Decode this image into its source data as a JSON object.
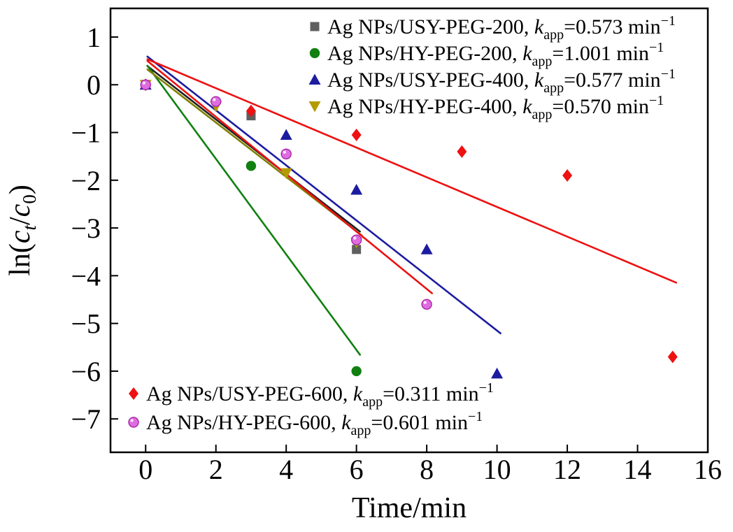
{
  "chart_data": {
    "type": "scatter",
    "title": "",
    "xlabel": "Time/min",
    "ylabel": "ln(ct/c0)",
    "ylabel_segments": [
      {
        "t": "ln(",
        "style": "normal"
      },
      {
        "t": "c",
        "style": "italic"
      },
      {
        "t": "t",
        "style": "sub-italic"
      },
      {
        "t": "/",
        "style": "normal"
      },
      {
        "t": "c",
        "style": "italic"
      },
      {
        "t": "0",
        "style": "sub"
      },
      {
        "t": ")",
        "style": "normal"
      }
    ],
    "xlim": [
      -1,
      16
    ],
    "ylim": [
      -7.7,
      1.6
    ],
    "xticks": [
      0,
      2,
      4,
      6,
      8,
      10,
      12,
      14,
      16
    ],
    "yticks": [
      1,
      0,
      -1,
      -2,
      -3,
      -4,
      -5,
      -6,
      -7
    ],
    "grid": false,
    "legend": {
      "separator": ", ",
      "k_symbol": "k",
      "k_sub": "app",
      "equals": "=",
      "unit": " min",
      "sup": "−1",
      "top_entries": [
        0,
        1,
        2,
        3
      ],
      "bottom_entries": [
        4,
        5
      ]
    },
    "series": [
      {
        "name": "Ag NPs/USY-PEG-200",
        "kapp": "0.573",
        "marker": "square",
        "color": "#5f5f5f",
        "line_color": "#1f1f1f",
        "points": [
          [
            0,
            0
          ],
          [
            3,
            -0.65
          ],
          [
            6,
            -3.45
          ]
        ],
        "fit_intercept": 0.42,
        "fit_x": [
          0.05,
          6.1
        ]
      },
      {
        "name": "Ag NPs/HY-PEG-200",
        "kapp": "1.001",
        "marker": "circle",
        "color": "#118011",
        "line_color": "#118011",
        "points": [
          [
            0,
            0
          ],
          [
            3,
            -1.7
          ],
          [
            6,
            -6.0
          ]
        ],
        "fit_intercept": 0.45,
        "fit_x": [
          0.05,
          6.1
        ]
      },
      {
        "name": "Ag NPs/USY-PEG-400",
        "kapp": "0.577",
        "marker": "triangle-up",
        "color": "#1c1ca0",
        "line_color": "#1c1ca0",
        "points": [
          [
            0,
            0
          ],
          [
            4,
            -1.05
          ],
          [
            6,
            -2.2
          ],
          [
            8,
            -3.45
          ],
          [
            10,
            -6.05
          ]
        ],
        "fit_intercept": 0.62,
        "fit_x": [
          0.05,
          10.1
        ]
      },
      {
        "name": "Ag NPs/HY-PEG-400",
        "kapp": "0.570",
        "marker": "triangle-down",
        "color": "#b39b00",
        "line_color": "#7f7f00",
        "points": [
          [
            0,
            0
          ],
          [
            2,
            -0.45
          ],
          [
            4,
            -1.85
          ],
          [
            6,
            -3.3
          ]
        ],
        "fit_intercept": 0.35,
        "fit_x": [
          0.05,
          6.15
        ]
      },
      {
        "name": "Ag NPs/USY-PEG-600",
        "kapp": "0.311",
        "marker": "diamond",
        "color": "#ee1111",
        "line_color": "#ee1111",
        "points": [
          [
            0,
            0
          ],
          [
            3,
            -0.55
          ],
          [
            6,
            -1.05
          ],
          [
            9,
            -1.4
          ],
          [
            12,
            -1.9
          ],
          [
            15,
            -5.7
          ]
        ],
        "fit_intercept": 0.55,
        "fit_x": [
          0.05,
          15.1
        ]
      },
      {
        "name": "Ag NPs/HY-PEG-600",
        "kapp": "0.601",
        "marker": "sphere",
        "color": "#df6ce0",
        "line_color": "#ee1111",
        "points": [
          [
            0,
            0
          ],
          [
            2,
            -0.35
          ],
          [
            4,
            -1.45
          ],
          [
            6,
            -3.25
          ],
          [
            8,
            -4.6
          ]
        ],
        "fit_intercept": 0.53,
        "fit_x": [
          0.05,
          8.15
        ]
      }
    ]
  }
}
